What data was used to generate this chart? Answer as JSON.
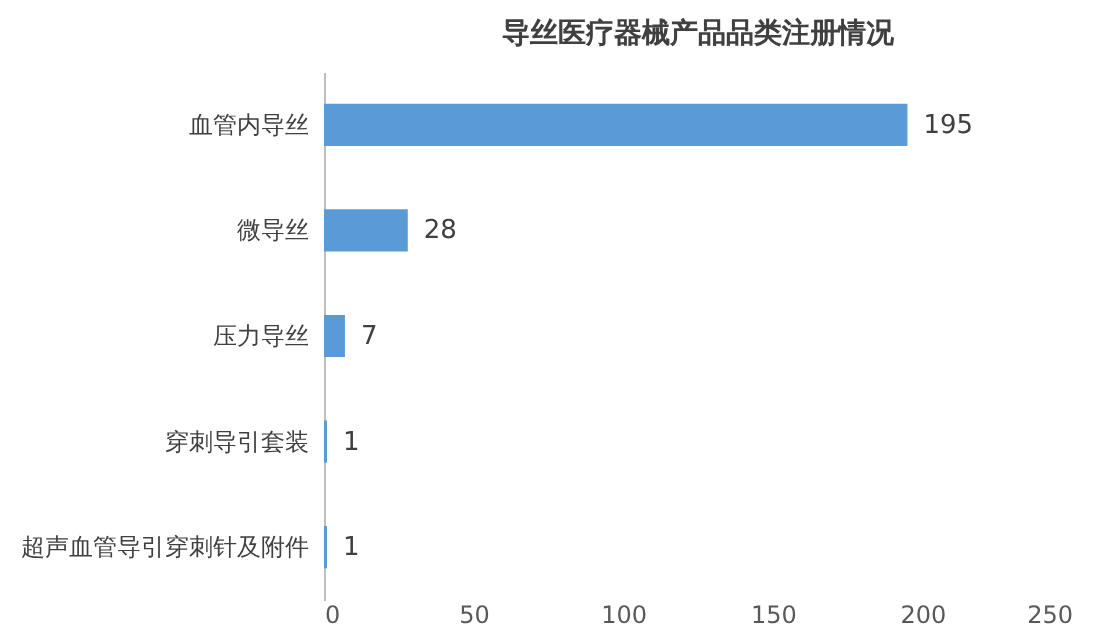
{
  "chart_data": {
    "type": "bar",
    "orientation": "horizontal",
    "title": "导丝医疗器械产品品类注册情况",
    "categories": [
      "血管内导丝",
      "微导丝",
      "压力导丝",
      "穿刺导引套装",
      "超声血管导引穿刺针及附件"
    ],
    "values": [
      195,
      28,
      7,
      1,
      1
    ],
    "color": "#5b9bd5",
    "xlim": [
      0,
      250
    ],
    "xticks": [
      0,
      50,
      100,
      150,
      200,
      250
    ],
    "data_labels": true,
    "grid": false
  }
}
